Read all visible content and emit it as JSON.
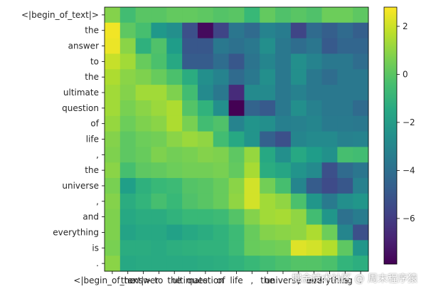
{
  "chart_data": {
    "type": "heatmap",
    "title": "",
    "xlabel": "",
    "ylabel": "",
    "tokens": [
      "<|begin_of_text|>",
      "the",
      "answer",
      "to",
      "the",
      "ultimate",
      "question",
      "of",
      "life",
      ",",
      "the",
      "universe",
      ",",
      "and",
      "everything",
      "is",
      "."
    ],
    "colorbar": {
      "ticks": [
        2,
        0,
        -2,
        -4,
        -6
      ],
      "vmin": -7.9,
      "vmax": 2.8,
      "colormap": "viridis"
    },
    "values": [
      [
        0.8,
        -0.5,
        0.0,
        0.0,
        0.2,
        0.2,
        0.1,
        -0.1,
        0.0,
        -0.7,
        0.2,
        -0.2,
        0.0,
        -0.2,
        0.4,
        0.4,
        0.1
      ],
      [
        2.6,
        0.1,
        -0.4,
        -2.2,
        -2.6,
        -5.3,
        -7.6,
        -5.7,
        -3.7,
        -4.2,
        -3.1,
        -3.4,
        -5.7,
        -4.2,
        -4.7,
        -4.2,
        -4.7
      ],
      [
        2.5,
        0.9,
        -1.1,
        -0.2,
        -2.0,
        -5.0,
        -5.0,
        -3.6,
        -3.9,
        -3.6,
        -2.6,
        -3.6,
        -4.1,
        -3.7,
        -4.9,
        -4.4,
        -4.4
      ],
      [
        1.9,
        1.3,
        0.3,
        -0.3,
        -1.5,
        -4.8,
        -4.8,
        -4.1,
        -5.0,
        -3.8,
        -3.0,
        -3.6,
        -2.6,
        -3.1,
        -3.6,
        -3.6,
        -4.1
      ],
      [
        1.5,
        0.9,
        0.7,
        0.3,
        -0.3,
        -1.3,
        -2.6,
        -3.1,
        -4.2,
        -3.6,
        -2.6,
        -3.6,
        -2.6,
        -3.6,
        -4.1,
        -3.6,
        -3.6
      ],
      [
        1.3,
        0.8,
        1.3,
        1.3,
        0.7,
        -0.5,
        -2.8,
        -3.6,
        -6.6,
        -2.8,
        -2.8,
        -3.6,
        -3.2,
        -3.6,
        -3.6,
        -3.6,
        -3.6
      ],
      [
        1.3,
        0.6,
        0.9,
        1.2,
        1.5,
        -0.1,
        -1.0,
        -2.6,
        -7.9,
        -4.5,
        -4.9,
        -3.6,
        -2.6,
        -3.2,
        -3.6,
        -3.6,
        -4.2
      ],
      [
        1.1,
        0.4,
        0.7,
        0.9,
        1.5,
        0.6,
        -0.5,
        -0.2,
        -3.1,
        -2.4,
        -2.6,
        -3.3,
        -3.2,
        -3.0,
        -3.5,
        -3.5,
        -3.6
      ],
      [
        0.8,
        0.1,
        0.4,
        0.5,
        0.9,
        1.2,
        1.0,
        -0.5,
        -1.5,
        -2.4,
        -4.6,
        -5.3,
        -3.0,
        -2.8,
        -2.8,
        -3.2,
        -3.1
      ],
      [
        0.7,
        0.1,
        0.3,
        0.7,
        0.5,
        0.6,
        0.8,
        0.7,
        0.1,
        1.1,
        -1.5,
        -2.6,
        -1.5,
        -2.0,
        -2.5,
        -0.4,
        -0.5
      ],
      [
        0.9,
        -0.4,
        0.1,
        0.2,
        0.4,
        0.5,
        0.5,
        0.6,
        0.2,
        1.4,
        -1.3,
        -1.6,
        -2.4,
        -2.8,
        -5.3,
        -4.2,
        -3.7
      ],
      [
        0.6,
        -1.9,
        -1.1,
        -0.7,
        -0.6,
        -0.1,
        0.0,
        0.3,
        0.9,
        2.1,
        0.5,
        -0.4,
        -3.0,
        -4.8,
        -5.5,
        -5.0,
        -3.2
      ],
      [
        0.8,
        -1.3,
        -0.9,
        -0.4,
        -0.7,
        -0.2,
        0.0,
        0.3,
        1.0,
        2.1,
        1.3,
        1.0,
        -0.3,
        -2.3,
        -3.5,
        -2.6,
        -2.3
      ],
      [
        0.7,
        -1.5,
        -1.3,
        -1.3,
        -1.0,
        -0.7,
        -0.7,
        -0.6,
        -0.1,
        0.8,
        1.3,
        1.4,
        1.0,
        -0.5,
        -2.3,
        -3.9,
        -3.4
      ],
      [
        0.7,
        -1.7,
        -1.5,
        -1.5,
        -1.8,
        -1.5,
        -1.3,
        -1.0,
        -0.6,
        0.3,
        0.8,
        0.9,
        1.0,
        1.5,
        0.4,
        -3.0,
        -5.3
      ],
      [
        0.6,
        -1.3,
        -1.3,
        -1.4,
        -1.2,
        -1.1,
        -1.0,
        -1.0,
        -0.6,
        0.3,
        0.4,
        0.5,
        2.3,
        2.1,
        1.6,
        0.1,
        -2.3
      ],
      [
        0.9,
        -1.5,
        -1.4,
        -1.4,
        -1.4,
        -1.4,
        -1.3,
        -1.2,
        -1.0,
        -0.7,
        -0.5,
        -0.3,
        -0.1,
        -0.1,
        -0.3,
        -0.9,
        -1.2
      ]
    ]
  },
  "watermark": "掘金技术社区 @ 周末程序猿"
}
